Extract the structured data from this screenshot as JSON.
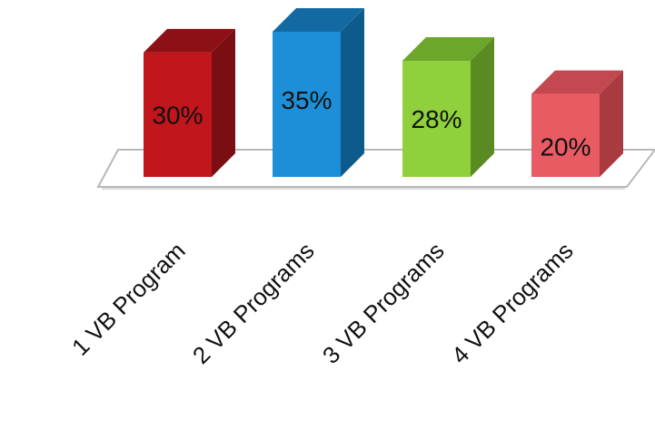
{
  "chart_data": {
    "type": "bar",
    "style": "3d-column",
    "categories": [
      "1 VB Program",
      "2 VB Programs",
      "3 VB Programs",
      "4 VB Programs"
    ],
    "values": [
      30,
      35,
      28,
      20
    ],
    "data_labels": [
      "30%",
      "35%",
      "28%",
      "20%"
    ],
    "ylim": [
      0,
      35
    ],
    "grid": false,
    "legend": "none",
    "colors": {
      "bars": [
        "#c0161c",
        "#1d8fd8",
        "#8fd03c",
        "#e85b63"
      ],
      "bar_sides": [
        "#7a0e13",
        "#0e5a8c",
        "#5a8a22",
        "#a83a40"
      ],
      "bar_tops": [
        "#8c1015",
        "#136aa3",
        "#6ca62b",
        "#c44850"
      ],
      "floor_stroke": "#b8b8b8",
      "text": "#111111"
    }
  }
}
